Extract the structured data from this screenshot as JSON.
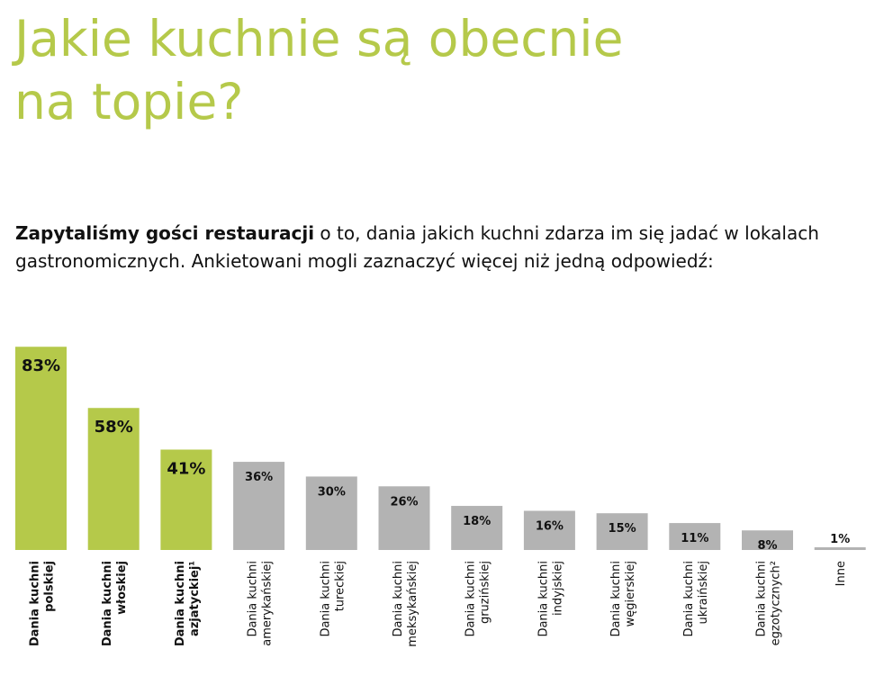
{
  "header": {
    "title_lines": [
      "Jakie kuchnie są obecnie",
      "na topie?"
    ],
    "intro_bold": "Zapytaliśmy gości restauracji",
    "intro_text": " o to, dania jakich kuchni zdarza im się jadać w lokalach gastronomicznych. Ankietowani mogli zaznaczyć więcej niż jedną odpowiedź:"
  },
  "colors": {
    "accent": "#b5c94a",
    "highlight_bar": "#b5c94a",
    "gray_bar": "#b3b3b3",
    "text": "#111111"
  },
  "chart_data": {
    "type": "bar",
    "ylim": [
      0,
      100
    ],
    "grid": false,
    "value_suffix": "%",
    "categories": [
      [
        "Dania kuchni",
        "polskiej"
      ],
      [
        "Dania kuchni",
        "włoskiej"
      ],
      [
        "Dania kuchni",
        "azjatyckiej¹"
      ],
      [
        "Dania kuchni",
        "amerykańskiej"
      ],
      [
        "Dania kuchni",
        "tureckiej"
      ],
      [
        "Dania kuchni",
        "meksykańskiej"
      ],
      [
        "Dania kuchni",
        "gruzińskiej"
      ],
      [
        "Dania kuchni",
        "indyjskiej"
      ],
      [
        "Dania kuchni",
        "węgierskiej"
      ],
      [
        "Dania kuchni",
        "ukraińskiej"
      ],
      [
        "Dania kuchni",
        "egzotycznych²"
      ],
      [
        "Inne"
      ]
    ],
    "values": [
      83,
      58,
      41,
      36,
      30,
      26,
      18,
      16,
      15,
      11,
      8,
      1
    ],
    "highlighted": [
      true,
      true,
      true,
      false,
      false,
      false,
      false,
      false,
      false,
      false,
      false,
      false
    ]
  }
}
